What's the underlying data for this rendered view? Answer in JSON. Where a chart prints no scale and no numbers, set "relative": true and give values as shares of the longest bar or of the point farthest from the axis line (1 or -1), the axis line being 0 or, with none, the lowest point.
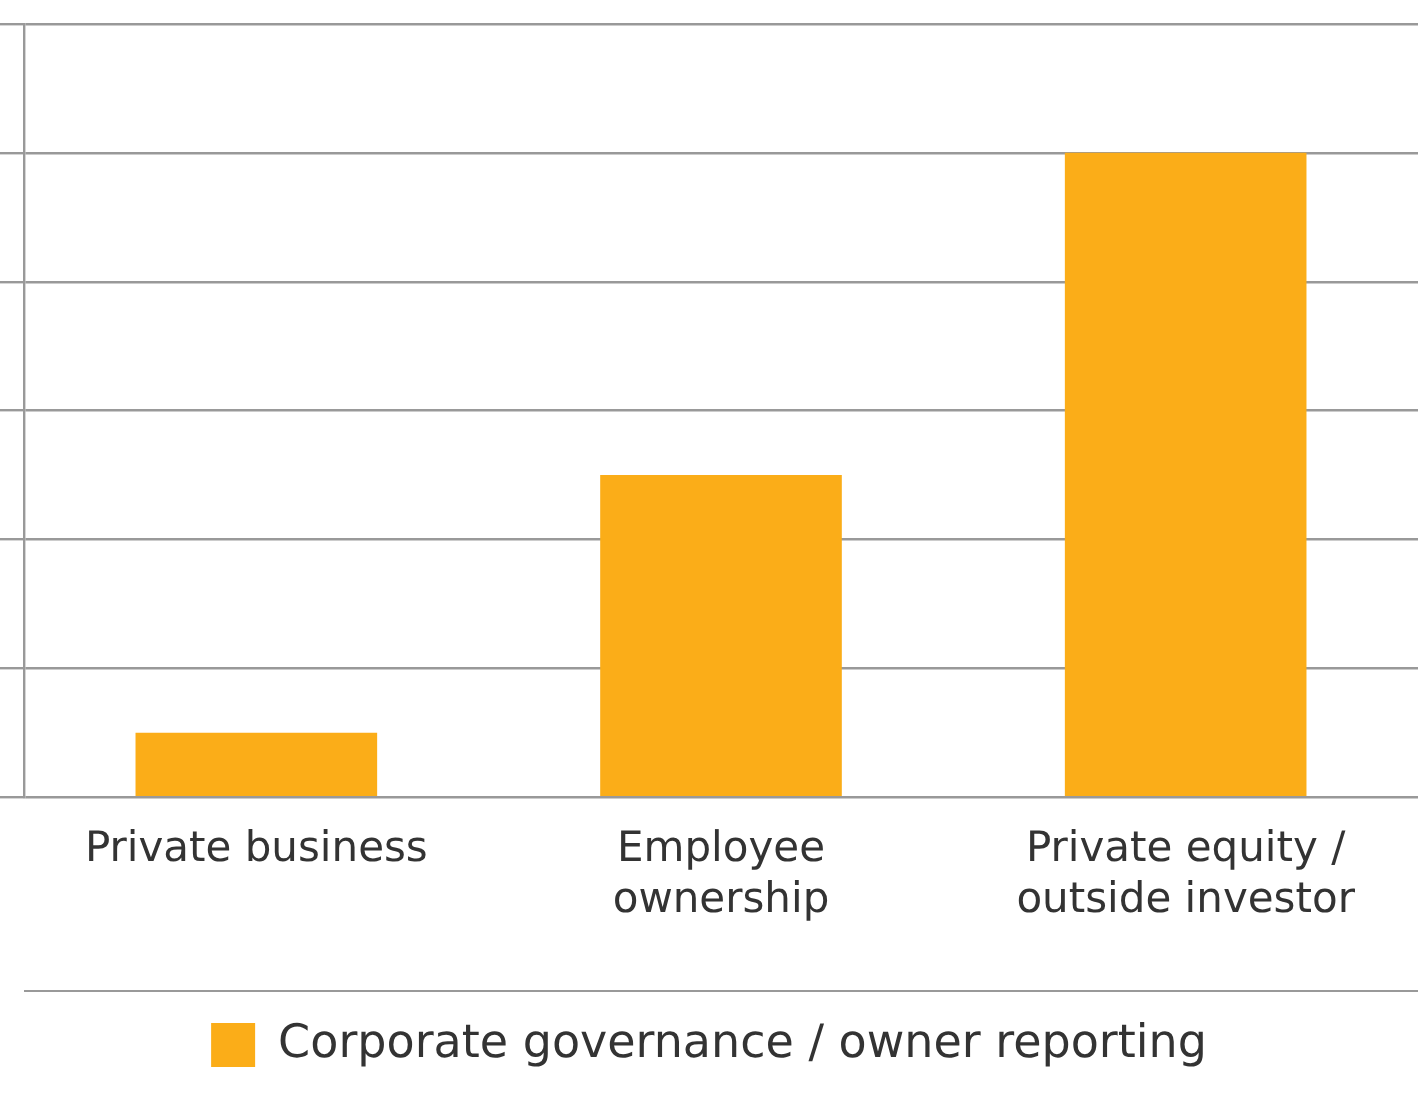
{
  "chart_data": {
    "type": "bar",
    "categories": [
      "Private business",
      "Employee ownership",
      "Private equity / outside investor"
    ],
    "series": [
      {
        "name": "Corporate governance / owner reporting",
        "color": "#fbad18",
        "values": [
          0.1,
          0.5,
          1
        ]
      }
    ],
    "relative": true,
    "grid": "y",
    "legend": "bottom"
  }
}
